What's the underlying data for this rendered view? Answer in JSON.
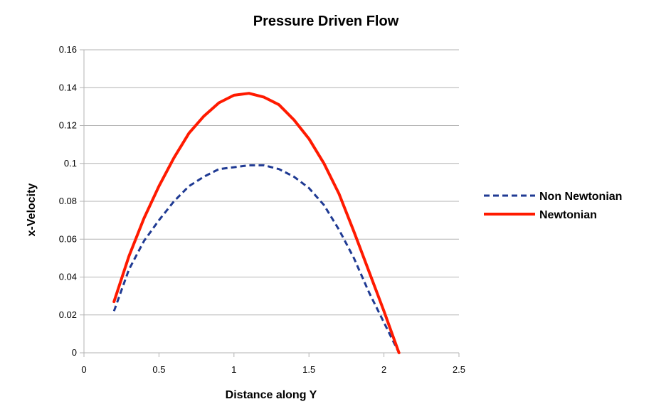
{
  "chart_data": {
    "type": "line",
    "title": "Pressure Driven Flow",
    "xlabel": "Distance along Y",
    "ylabel": "x-Velocity",
    "xlim": [
      0,
      2.5
    ],
    "ylim": [
      0,
      0.16
    ],
    "xticks": [
      0,
      0.5,
      1,
      1.5,
      2,
      2.5
    ],
    "xtick_labels": [
      "0",
      "0.5",
      "1",
      "1.5",
      "2",
      "2.5"
    ],
    "yticks": [
      0,
      0.02,
      0.04,
      0.06,
      0.08,
      0.1,
      0.12,
      0.14,
      0.16
    ],
    "ytick_labels": [
      "0",
      "0.02",
      "0.04",
      "0.06",
      "0.08",
      "0.1",
      "0.12",
      "0.14",
      "0.16"
    ],
    "grid": true,
    "legend_position": "right",
    "series": [
      {
        "name": "Non Newtonian",
        "color": "#1f3a93",
        "style": "dashed",
        "x": [
          0.2,
          0.3,
          0.4,
          0.5,
          0.6,
          0.7,
          0.8,
          0.9,
          1.0,
          1.1,
          1.2,
          1.3,
          1.4,
          1.5,
          1.6,
          1.7,
          1.8,
          1.9,
          2.0,
          2.05,
          2.1
        ],
        "y": [
          0.022,
          0.044,
          0.059,
          0.07,
          0.08,
          0.088,
          0.093,
          0.097,
          0.098,
          0.099,
          0.099,
          0.097,
          0.093,
          0.087,
          0.078,
          0.065,
          0.05,
          0.032,
          0.016,
          0.008,
          0.0
        ]
      },
      {
        "name": "Newtonian",
        "color": "#ff1a00",
        "style": "solid",
        "x": [
          0.2,
          0.3,
          0.4,
          0.5,
          0.6,
          0.7,
          0.8,
          0.9,
          1.0,
          1.1,
          1.2,
          1.3,
          1.4,
          1.5,
          1.6,
          1.7,
          1.8,
          1.9,
          2.0,
          2.05,
          2.1
        ],
        "y": [
          0.027,
          0.051,
          0.071,
          0.088,
          0.103,
          0.116,
          0.125,
          0.132,
          0.136,
          0.137,
          0.135,
          0.131,
          0.123,
          0.113,
          0.1,
          0.084,
          0.064,
          0.043,
          0.022,
          0.011,
          0.0
        ]
      }
    ]
  }
}
